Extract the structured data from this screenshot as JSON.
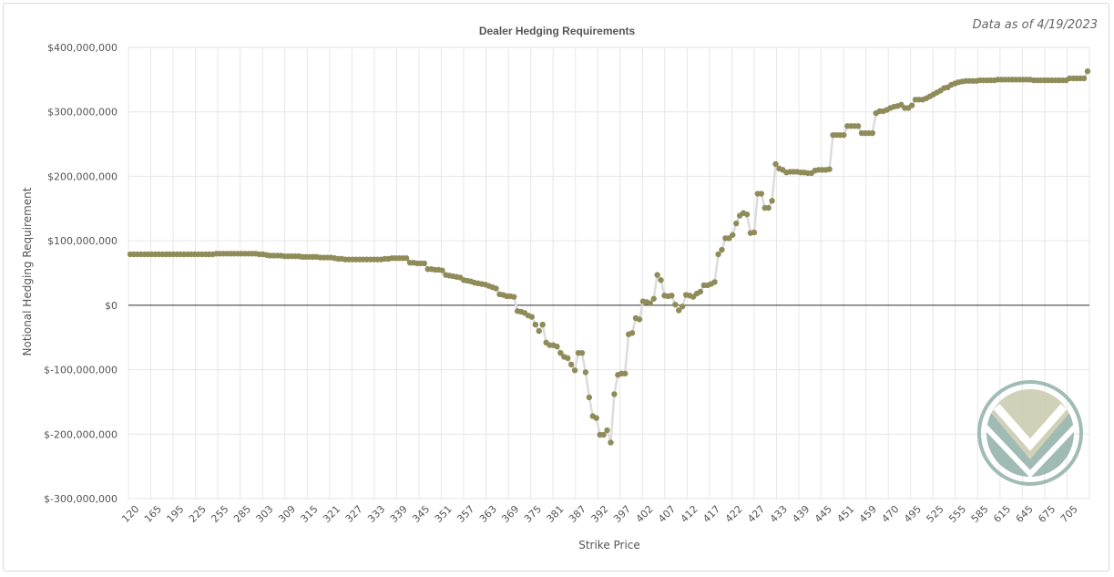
{
  "chart_data": {
    "type": "line",
    "title": "Dealer Hedging Requirements",
    "subtitle": "Data as of 4/19/2023",
    "xlabel": "Strike Price",
    "ylabel": "Notional Hedging Requirement",
    "ylim": [
      -300000000,
      400000000
    ],
    "y_ticks": [
      {
        "value": 400000000,
        "label": "$400,000,000"
      },
      {
        "value": 300000000,
        "label": "$300,000,000"
      },
      {
        "value": 200000000,
        "label": "$200,000,000"
      },
      {
        "value": 100000000,
        "label": "$100,000,000"
      },
      {
        "value": 0,
        "label": "$0"
      },
      {
        "value": -100000000,
        "label": "$-100,000,000"
      },
      {
        "value": -200000000,
        "label": "$-200,000,000"
      },
      {
        "value": -300000000,
        "label": "$-300,000,000"
      }
    ],
    "x_tick_labels": [
      "120",
      "165",
      "195",
      "225",
      "255",
      "285",
      "303",
      "309",
      "315",
      "321",
      "327",
      "333",
      "339",
      "345",
      "351",
      "357",
      "363",
      "369",
      "375",
      "381",
      "387",
      "392",
      "397",
      "402",
      "407",
      "412",
      "417",
      "422",
      "427",
      "433",
      "439",
      "445",
      "451",
      "459",
      "470",
      "495",
      "525",
      "555",
      "585",
      "615",
      "645",
      "675",
      "705"
    ],
    "grid": true,
    "legend": "none",
    "colors": {
      "marker": "#8f8c5a",
      "line": "#dcdcdc",
      "zero_line": "#333333",
      "grid": "#e6e6e6"
    },
    "series": [
      {
        "values": [
          79000000,
          79000000,
          79000000,
          79000000,
          79000000,
          79000000,
          79000000,
          79000000,
          79000000,
          79000000,
          79000000,
          79000000,
          79000000,
          79000000,
          79000000,
          79000000,
          79000000,
          79000000,
          79000000,
          79000000,
          79000000,
          79000000,
          79000000,
          79000000,
          80000000,
          80000000,
          80000000,
          80000000,
          80000000,
          80000000,
          80000000,
          80000000,
          80000000,
          80000000,
          80000000,
          80000000,
          79000000,
          79000000,
          78000000,
          77000000,
          77000000,
          77000000,
          77000000,
          76000000,
          76000000,
          76000000,
          76000000,
          76000000,
          75000000,
          75000000,
          75000000,
          75000000,
          75000000,
          74000000,
          74000000,
          74000000,
          74000000,
          73000000,
          72000000,
          72000000,
          71000000,
          71000000,
          71000000,
          71000000,
          71000000,
          71000000,
          71000000,
          71000000,
          71000000,
          71000000,
          71000000,
          72000000,
          72000000,
          73000000,
          73000000,
          73000000,
          73000000,
          73000000,
          66000000,
          66000000,
          65000000,
          65000000,
          65000000,
          56000000,
          56000000,
          55000000,
          55000000,
          54000000,
          47000000,
          46000000,
          45000000,
          44000000,
          43000000,
          39000000,
          38000000,
          37000000,
          35000000,
          34000000,
          33000000,
          32000000,
          30000000,
          28000000,
          26000000,
          17000000,
          16000000,
          14000000,
          14000000,
          13000000,
          -9000000,
          -10000000,
          -12000000,
          -16000000,
          -18000000,
          -30000000,
          -40000000,
          -30000000,
          -58000000,
          -62000000,
          -62000000,
          -64000000,
          -74000000,
          -80000000,
          -82000000,
          -92000000,
          -101000000,
          -74000000,
          -74000000,
          -104000000,
          -143000000,
          -172000000,
          -175000000,
          -201000000,
          -201000000,
          -194000000,
          -213000000,
          -138000000,
          -108000000,
          -106000000,
          -106000000,
          -45000000,
          -43000000,
          -20000000,
          -22000000,
          6000000,
          5000000,
          3000000,
          10000000,
          47000000,
          39000000,
          15000000,
          14000000,
          15000000,
          1000000,
          -8000000,
          -2000000,
          16000000,
          15000000,
          13000000,
          18000000,
          21000000,
          31000000,
          31000000,
          33000000,
          36000000,
          79000000,
          86000000,
          104000000,
          104000000,
          109000000,
          127000000,
          139000000,
          143000000,
          141000000,
          112000000,
          113000000,
          173000000,
          173000000,
          151000000,
          151000000,
          162000000,
          219000000,
          212000000,
          210000000,
          206000000,
          207000000,
          207000000,
          207000000,
          206000000,
          206000000,
          205000000,
          205000000,
          209000000,
          210000000,
          210000000,
          210000000,
          211000000,
          264000000,
          264000000,
          264000000,
          264000000,
          278000000,
          278000000,
          278000000,
          278000000,
          267000000,
          267000000,
          267000000,
          267000000,
          298000000,
          301000000,
          301000000,
          303000000,
          306000000,
          308000000,
          309000000,
          311000000,
          306000000,
          306000000,
          310000000,
          319000000,
          319000000,
          319000000,
          321000000,
          324000000,
          327000000,
          330000000,
          333000000,
          337000000,
          338000000,
          342000000,
          344000000,
          346000000,
          347000000,
          348000000,
          348000000,
          348000000,
          348000000,
          349000000,
          349000000,
          349000000,
          349000000,
          349000000,
          350000000,
          350000000,
          350000000,
          350000000,
          350000000,
          350000000,
          350000000,
          350000000,
          350000000,
          350000000,
          349000000,
          349000000,
          349000000,
          349000000,
          349000000,
          349000000,
          349000000,
          349000000,
          349000000,
          349000000,
          352000000,
          352000000,
          352000000,
          352000000,
          352000000,
          363000000
        ]
      }
    ]
  },
  "watermark": {
    "icon": "v-logo-icon",
    "colors": [
      "#8fb0a7",
      "#c9c8ad"
    ]
  }
}
